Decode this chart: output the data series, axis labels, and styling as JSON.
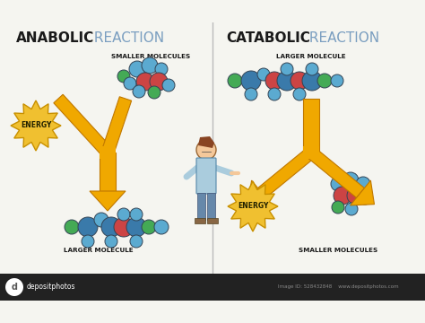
{
  "bg_color": "#f5f5f0",
  "divider_color": "#bbbbbb",
  "title_left_bold": "ANABOLIC",
  "title_left_light": " REACTION",
  "title_right_bold": "CATABOLIC",
  "title_right_light": " REACTION",
  "title_fontsize": 11,
  "title_bold_color": "#1a1a1a",
  "title_light_color": "#7a9ec0",
  "label_fontsize": 5.2,
  "label_color": "#1a1a1a",
  "label_sm_anabolic": "SMALLER MOLECULES",
  "label_lg_anabolic": "LARGER MOLECULE",
  "label_lg_catabolic": "LARGER MOLECULE",
  "label_sm_catabolic": "SMALLER MOLECULES",
  "energy_label": "ENERGY",
  "energy_fill": "#f0c030",
  "energy_edge": "#c89000",
  "arrow_fill": "#f0a800",
  "arrow_edge": "#c07800",
  "mol_blue_light": "#5baad0",
  "mol_blue_dark": "#3a7aaa",
  "mol_red": "#cc4444",
  "mol_green": "#44aa55",
  "mol_teal": "#3388aa",
  "bond_color": "#555566",
  "wm_bg": "#222222",
  "wm_text": "#ffffff",
  "wm_text2": "#888888"
}
